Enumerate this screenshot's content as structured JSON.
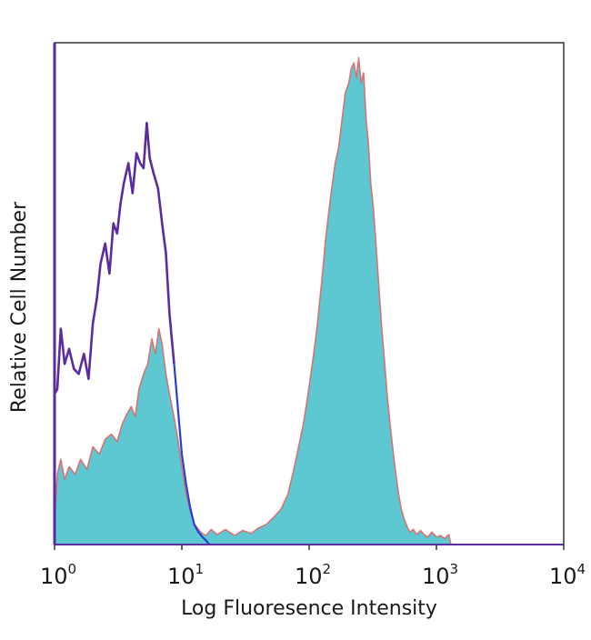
{
  "chart_data": {
    "type": "line",
    "xlabel": "Log Fluoresence Intensity",
    "ylabel": "Relative Cell Number",
    "xscale": "log",
    "xlim": [
      1,
      10000
    ],
    "ylim": [
      0,
      100
    ],
    "grid": false,
    "legend": "none",
    "x_ticks": [
      {
        "base": "10",
        "exp": "0"
      },
      {
        "base": "10",
        "exp": "1"
      },
      {
        "base": "10",
        "exp": "2"
      },
      {
        "base": "10",
        "exp": "3"
      },
      {
        "base": "10",
        "exp": "4"
      }
    ],
    "colors": {
      "filled": "#5ec8d2",
      "filled_outline": "#e06060",
      "isotype": "#5a2ca0",
      "isotype_tail": "#2840d0",
      "axes": "#333333"
    },
    "series": [
      {
        "style": "filled",
        "x": [
          1.0,
          1.05,
          1.12,
          1.2,
          1.3,
          1.45,
          1.6,
          1.8,
          2.0,
          2.25,
          2.5,
          2.8,
          3.1,
          3.4,
          3.7,
          4.0,
          4.3,
          4.6,
          5.0,
          5.4,
          5.8,
          6.2,
          6.6,
          7.0,
          7.5,
          8.0,
          8.6,
          9.3,
          10.0,
          10.8,
          11.7,
          12.6,
          13.5,
          14.5,
          15.5,
          17.0,
          19.0,
          22.0,
          26.0,
          30.0,
          35.0,
          40.0,
          46.0,
          53.0,
          60.0,
          68.0,
          75.0,
          82.0,
          90.0,
          98.0,
          106.0,
          115.0,
          125.0,
          135.0,
          147.0,
          160.0,
          170.0,
          180.0,
          192.0,
          205.0,
          215.0,
          225.0,
          235.0,
          245.0,
          256.0,
          268.0,
          280.0,
          292.0,
          305.0,
          320.0,
          335.0,
          352.0,
          370.0,
          390.0,
          410.0,
          432.0,
          455.0,
          480.0,
          505.0,
          530.0,
          560.0,
          590.0,
          620.0,
          660.0,
          700.0,
          750.0,
          800.0,
          860.0,
          920.0,
          1000.0,
          1080.0,
          1160.0,
          1250.0,
          1300.0
        ],
        "y": [
          5.0,
          14.0,
          17.0,
          13.0,
          15.5,
          14.0,
          17.0,
          15.0,
          19.5,
          18.0,
          21.0,
          22.0,
          20.5,
          24.0,
          26.0,
          27.5,
          25.5,
          31.0,
          34.0,
          36.0,
          41.0,
          38.0,
          43.0,
          40.0,
          34.0,
          30.0,
          26.0,
          21.0,
          15.5,
          10.0,
          6.5,
          4.0,
          3.0,
          2.2,
          1.8,
          3.0,
          2.0,
          3.0,
          1.8,
          2.8,
          2.2,
          3.3,
          4.0,
          5.5,
          7.0,
          10.0,
          14.5,
          19.0,
          24.0,
          30.0,
          36.0,
          43.0,
          52.0,
          61.0,
          69.0,
          76.0,
          79.0,
          84.0,
          90.0,
          92.0,
          95.0,
          96.0,
          93.0,
          97.0,
          92.0,
          94.0,
          85.0,
          80.0,
          72.0,
          67.0,
          60.0,
          52.0,
          44.0,
          37.0,
          30.0,
          24.0,
          19.0,
          14.0,
          10.0,
          7.0,
          5.0,
          3.5,
          2.5,
          3.0,
          2.0,
          2.8,
          2.0,
          1.5,
          2.5,
          1.5,
          1.8,
          1.2,
          2.0,
          0.0
        ]
      },
      {
        "style": "outline",
        "x": [
          1.0,
          1.05,
          1.12,
          1.2,
          1.3,
          1.42,
          1.55,
          1.7,
          1.85,
          2.0,
          2.15,
          2.3,
          2.5,
          2.7,
          2.9,
          3.1,
          3.3,
          3.5,
          3.8,
          4.1,
          4.4,
          4.7,
          5.0,
          5.3,
          5.6,
          6.0,
          6.5,
          7.0,
          7.5,
          8.0,
          8.7,
          9.4,
          10.0,
          10.8,
          11.6,
          12.5,
          13.5,
          14.5,
          15.5,
          16.5
        ],
        "y": [
          30.0,
          31.0,
          43.0,
          36.0,
          39.0,
          35.0,
          34.0,
          38.0,
          33.0,
          44.0,
          49.0,
          56.0,
          60.0,
          54.0,
          64.0,
          62.0,
          68.0,
          72.0,
          76.0,
          70.0,
          78.0,
          76.0,
          75.0,
          84.0,
          77.0,
          74.0,
          71.0,
          64.0,
          58.0,
          46.0,
          36.0,
          26.0,
          18.0,
          12.0,
          7.5,
          4.0,
          2.5,
          1.5,
          0.8,
          0.0
        ]
      }
    ]
  }
}
